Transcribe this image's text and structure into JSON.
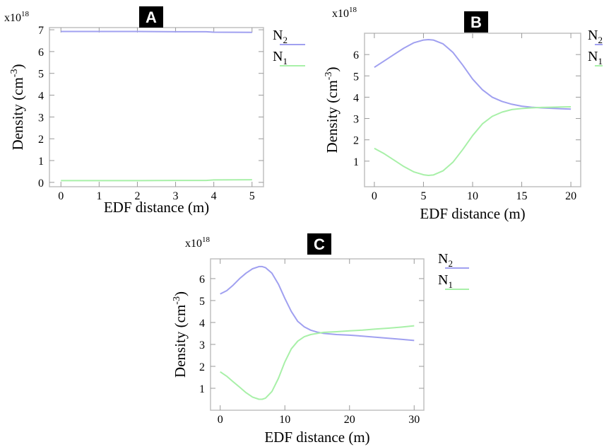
{
  "colors": {
    "N2": "#a0a0f0",
    "N1": "#a8f0a8",
    "frame": "#c0c0c0",
    "tick": "#999999"
  },
  "chart_data": [
    {
      "type": "line",
      "panel": "A",
      "multiplier": {
        "base": "x10",
        "exp": "18"
      },
      "xlabel": "EDF distance (m)",
      "ylabel": {
        "pre": "Density (cm",
        "sup": "-3",
        "post": ")"
      },
      "xlim": [
        -0.3,
        5.3
      ],
      "ylim": [
        -0.2,
        7.1
      ],
      "xticks": [
        0,
        1,
        2,
        3,
        4,
        5
      ],
      "yticks": [
        0,
        1,
        2,
        3,
        4,
        5,
        6,
        7
      ],
      "grid": false,
      "legend": "right",
      "series": [
        {
          "name": "N2",
          "legend_sub": "2",
          "legend_main": "N",
          "color_key": "N2",
          "x": [
            0,
            1,
            2,
            3,
            3.8,
            4,
            5
          ],
          "y": [
            6.92,
            6.92,
            6.92,
            6.91,
            6.91,
            6.89,
            6.88
          ]
        },
        {
          "name": "N1",
          "legend_sub": "1",
          "legend_main": "N",
          "color_key": "N1",
          "x": [
            0,
            1,
            2,
            3,
            3.8,
            4,
            5
          ],
          "y": [
            0.08,
            0.08,
            0.08,
            0.09,
            0.09,
            0.11,
            0.12
          ]
        }
      ]
    },
    {
      "type": "line",
      "panel": "B",
      "multiplier": {
        "base": "x10",
        "exp": "18"
      },
      "xlabel": "EDF distance (m)",
      "ylabel": {
        "pre": "Density (cm",
        "sup": "-3",
        "post": ")"
      },
      "xlim": [
        -1,
        21
      ],
      "ylim": [
        -0.2,
        7.0
      ],
      "xticks": [
        0,
        5,
        10,
        15,
        20
      ],
      "yticks": [
        1,
        2,
        3,
        4,
        5,
        6
      ],
      "grid": false,
      "legend": "right",
      "series": [
        {
          "name": "N2",
          "legend_sub": "2",
          "legend_main": "N",
          "color_key": "N2",
          "x": [
            0,
            1,
            2,
            3,
            4,
            5,
            5.5,
            6,
            7,
            8,
            9,
            10,
            11,
            12,
            13,
            14,
            15,
            16,
            17,
            18,
            19,
            20
          ],
          "y": [
            5.4,
            5.7,
            6.0,
            6.3,
            6.55,
            6.68,
            6.7,
            6.68,
            6.5,
            6.1,
            5.5,
            4.85,
            4.35,
            4.0,
            3.8,
            3.67,
            3.58,
            3.53,
            3.5,
            3.48,
            3.46,
            3.44
          ]
        },
        {
          "name": "N1",
          "legend_sub": "1",
          "legend_main": "N",
          "color_key": "N1",
          "x": [
            0,
            1,
            2,
            3,
            4,
            5,
            5.5,
            6,
            7,
            8,
            9,
            10,
            11,
            12,
            13,
            14,
            15,
            16,
            17,
            18,
            19,
            20
          ],
          "y": [
            1.6,
            1.35,
            1.05,
            0.75,
            0.5,
            0.36,
            0.33,
            0.35,
            0.55,
            0.95,
            1.55,
            2.2,
            2.75,
            3.1,
            3.3,
            3.42,
            3.47,
            3.5,
            3.52,
            3.53,
            3.54,
            3.55
          ]
        }
      ]
    },
    {
      "type": "line",
      "panel": "C",
      "multiplier": {
        "base": "x10",
        "exp": "18"
      },
      "xlabel": "EDF distance (m)",
      "ylabel": {
        "pre": "Density (cm",
        "sup": "-3",
        "post": ")"
      },
      "xlim": [
        -1.5,
        31.5
      ],
      "ylim": [
        0,
        6.9
      ],
      "xticks": [
        0,
        10,
        20,
        30
      ],
      "yticks": [
        1,
        2,
        3,
        4,
        5,
        6
      ],
      "grid": false,
      "legend": "right",
      "series": [
        {
          "name": "N2",
          "legend_sub": "2",
          "legend_main": "N",
          "color_key": "N2",
          "x": [
            0,
            1,
            2,
            3,
            4,
            5,
            6,
            6.5,
            7,
            8,
            9,
            10,
            11,
            12,
            13,
            14,
            15,
            16,
            18,
            20,
            22,
            24,
            26,
            28,
            30
          ],
          "y": [
            5.3,
            5.45,
            5.7,
            6.0,
            6.25,
            6.45,
            6.55,
            6.55,
            6.5,
            6.25,
            5.75,
            5.1,
            4.5,
            4.05,
            3.8,
            3.65,
            3.56,
            3.5,
            3.45,
            3.42,
            3.38,
            3.33,
            3.28,
            3.23,
            3.18
          ]
        },
        {
          "name": "N1",
          "legend_sub": "1",
          "legend_main": "N",
          "color_key": "N1",
          "x": [
            0,
            1,
            2,
            3,
            4,
            5,
            6,
            6.5,
            7,
            8,
            9,
            10,
            11,
            12,
            13,
            14,
            15,
            16,
            18,
            20,
            22,
            24,
            26,
            28,
            30
          ],
          "y": [
            1.75,
            1.55,
            1.3,
            1.05,
            0.8,
            0.6,
            0.5,
            0.5,
            0.55,
            0.85,
            1.45,
            2.2,
            2.8,
            3.15,
            3.35,
            3.45,
            3.5,
            3.55,
            3.58,
            3.62,
            3.65,
            3.7,
            3.74,
            3.79,
            3.85
          ]
        }
      ]
    }
  ]
}
